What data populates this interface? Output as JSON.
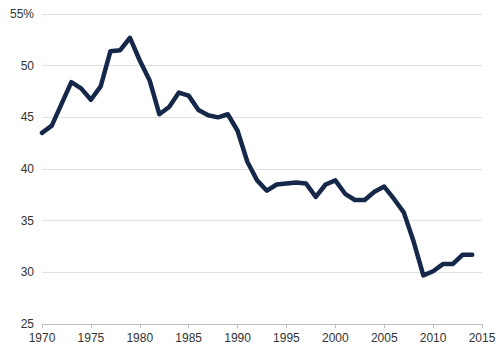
{
  "chart_data": {
    "type": "line",
    "x": [
      1970,
      1971,
      1972,
      1973,
      1974,
      1975,
      1976,
      1977,
      1978,
      1979,
      1980,
      1981,
      1982,
      1983,
      1984,
      1985,
      1986,
      1987,
      1988,
      1989,
      1990,
      1991,
      1992,
      1993,
      1994,
      1995,
      1996,
      1997,
      1998,
      1999,
      2000,
      2001,
      2002,
      2003,
      2004,
      2005,
      2006,
      2007,
      2008,
      2009,
      2010,
      2011,
      2012,
      2013,
      2014
    ],
    "values": [
      43.5,
      44.2,
      46.3,
      48.4,
      47.8,
      46.7,
      48.0,
      51.4,
      51.5,
      52.7,
      50.5,
      48.6,
      45.3,
      46.0,
      47.4,
      47.1,
      45.7,
      45.2,
      45.0,
      45.3,
      43.7,
      40.7,
      38.9,
      37.9,
      38.5,
      38.6,
      38.7,
      38.6,
      37.3,
      38.5,
      38.9,
      37.6,
      37.0,
      37.0,
      37.8,
      38.3,
      37.1,
      35.8,
      33.0,
      29.7,
      30.1,
      30.8,
      30.8,
      31.7,
      31.7
    ],
    "color": "#16284a",
    "xlim": [
      1970,
      2015
    ],
    "xticks": [
      1970,
      1975,
      1980,
      1985,
      1990,
      1995,
      2000,
      2005,
      2010,
      2015
    ],
    "ylim": [
      25,
      55
    ],
    "yticks": [
      25,
      30,
      35,
      40,
      45,
      50,
      {
        "value": 55,
        "label": "55%"
      }
    ],
    "grid": true
  }
}
